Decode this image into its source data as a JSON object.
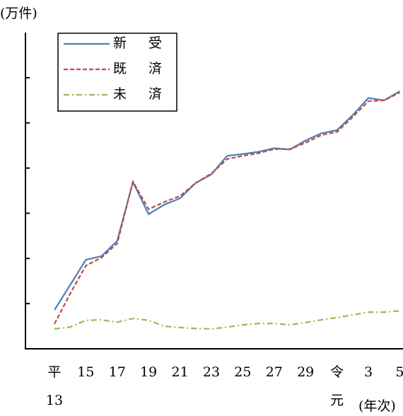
{
  "chart_data": {
    "type": "line",
    "y_label": "(万件)",
    "x_label": "(年次)",
    "categories": [
      "平13",
      null,
      "15",
      null,
      "17",
      null,
      "19",
      null,
      "21",
      null,
      "23",
      null,
      "25",
      null,
      "27",
      null,
      "29",
      null,
      "令元",
      null,
      "3",
      null,
      "5"
    ],
    "series": [
      {
        "name": "新　受",
        "color": "#4a7ebb",
        "dash": "solid",
        "values": [
          0.86,
          1.41,
          1.97,
          2.05,
          2.39,
          3.69,
          2.98,
          3.19,
          3.33,
          3.67,
          3.86,
          4.27,
          4.31,
          4.36,
          4.44,
          4.41,
          4.61,
          4.77,
          4.84,
          5.17,
          5.55,
          5.5,
          5.7
        ]
      },
      {
        "name": "既　済",
        "color": "#be4b48",
        "dash": "dashed",
        "values": [
          0.55,
          1.22,
          1.84,
          2.02,
          2.33,
          3.7,
          3.09,
          3.25,
          3.38,
          3.67,
          3.88,
          4.2,
          4.27,
          4.33,
          4.42,
          4.42,
          4.56,
          4.73,
          4.8,
          5.13,
          5.48,
          5.5,
          5.67
        ]
      },
      {
        "name": "未　済",
        "color": "#98b954",
        "dash": "dashdot",
        "values": [
          0.44,
          0.48,
          0.63,
          0.64,
          0.59,
          0.67,
          0.63,
          0.5,
          0.47,
          0.45,
          0.44,
          0.48,
          0.53,
          0.56,
          0.56,
          0.53,
          0.58,
          0.64,
          0.69,
          0.75,
          0.81,
          0.81,
          0.84
        ]
      }
    ],
    "ylim": [
      0,
      7
    ],
    "yticks": [
      1,
      2,
      3,
      4,
      5,
      6
    ],
    "legend": "top-left"
  }
}
